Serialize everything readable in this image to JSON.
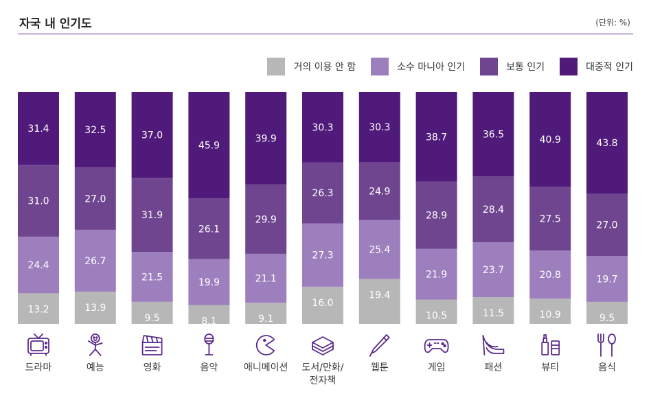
{
  "title": "자국 내 인기도",
  "unit": "(단위: %)",
  "chart_data": {
    "type": "bar",
    "stacked": true,
    "title": "자국 내 인기도",
    "ylim": [
      0,
      100
    ],
    "legend_position": "top-right",
    "categories": [
      "드라마",
      "예능",
      "영화",
      "음악",
      "애니메이션",
      "도서/만화/\n전자책",
      "웹툰",
      "게임",
      "패션",
      "뷰티",
      "음식"
    ],
    "category_lines": [
      [
        "드라마"
      ],
      [
        "예능"
      ],
      [
        "영화"
      ],
      [
        "음악"
      ],
      [
        "애니메이션"
      ],
      [
        "도서/만화/",
        "전자책"
      ],
      [
        "웹툰"
      ],
      [
        "게임"
      ],
      [
        "패션"
      ],
      [
        "뷰티"
      ],
      [
        "음식"
      ]
    ],
    "series": [
      {
        "name": "거의 이용 안 함",
        "color": "#b7b7b7",
        "values": [
          "13.2",
          "13.9",
          "9.5",
          "8.1",
          "9.1",
          "16.0",
          "19.4",
          "10.5",
          "11.5",
          "10.9",
          "9.5"
        ]
      },
      {
        "name": "소수 마니아 인기",
        "color": "#9d7fbe",
        "values": [
          "24.4",
          "26.7",
          "21.5",
          "19.9",
          "21.1",
          "27.3",
          "25.4",
          "21.9",
          "23.7",
          "20.8",
          "19.7"
        ]
      },
      {
        "name": "보통 인기",
        "color": "#6f4590",
        "values": [
          "31.0",
          "27.0",
          "31.9",
          "26.1",
          "29.9",
          "26.3",
          "24.9",
          "28.9",
          "28.4",
          "27.5",
          "27.0"
        ]
      },
      {
        "name": "대중적 인기",
        "color": "#4f1a79",
        "values": [
          "31.4",
          "32.5",
          "37.0",
          "45.9",
          "39.9",
          "30.3",
          "30.3",
          "38.7",
          "36.5",
          "40.9",
          "43.8"
        ]
      }
    ],
    "icons": [
      "tv-icon",
      "comedian-icon",
      "clapperboard-icon",
      "microphone-icon",
      "pacman-icon",
      "books-icon",
      "pen-icon",
      "gamepad-icon",
      "high-heel-icon",
      "cosmetics-icon",
      "fork-spoon-icon"
    ]
  }
}
